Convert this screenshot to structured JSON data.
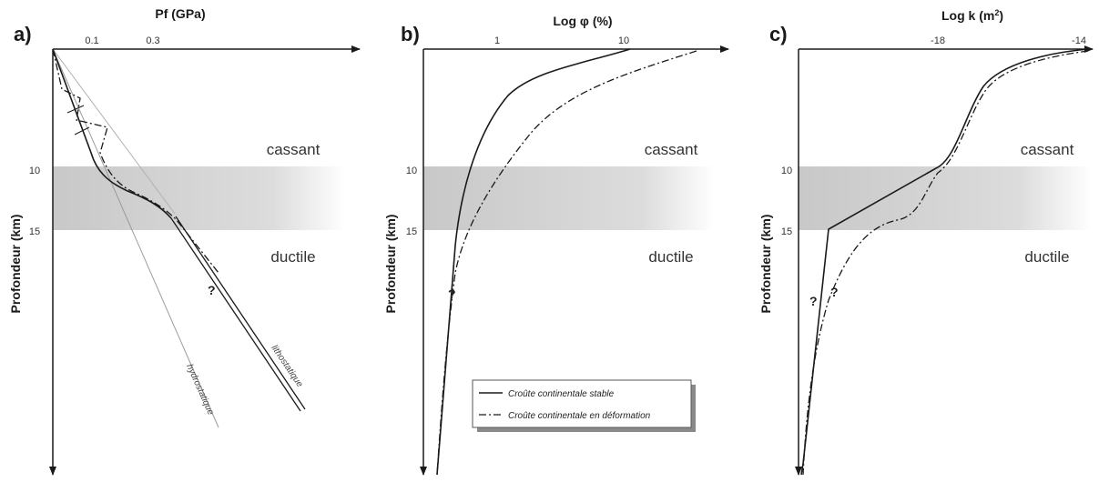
{
  "chart_data": [
    {
      "type": "line",
      "panel": "a)",
      "title": "Pf (GPa)",
      "ylabel": "Profondeur (km)",
      "x_ticks": [
        "0.1",
        "0.3"
      ],
      "y_ticks": [
        "10",
        "15"
      ],
      "zones": [
        "cassant",
        "ductile"
      ],
      "curve_labels": [
        "lithostatique",
        "hydrostatique"
      ],
      "question_mark": "?"
    },
    {
      "type": "line",
      "panel": "b)",
      "title": "Log φ (%)",
      "ylabel": "Profondeur (km)",
      "x_ticks": [
        "1",
        "10"
      ],
      "y_ticks": [
        "10",
        "15"
      ],
      "zones": [
        "cassant",
        "ductile"
      ],
      "question_mark": "?",
      "legend": [
        "Croûte continentale stable",
        "Croûte continentale en déformation"
      ]
    },
    {
      "type": "line",
      "panel": "c)",
      "title_main": "Log k (m",
      "title_sup": "2",
      "title_end": ")",
      "ylabel": "Profondeur (km)",
      "x_ticks": [
        "-18",
        "-14"
      ],
      "y_ticks": [
        "10",
        "15"
      ],
      "zones": [
        "cassant",
        "ductile"
      ],
      "question_marks": [
        "?",
        "?"
      ]
    }
  ]
}
